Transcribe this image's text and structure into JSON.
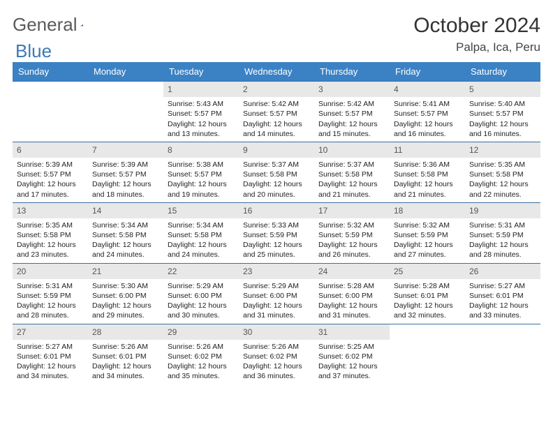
{
  "brand": {
    "part1": "General",
    "part2": "Blue"
  },
  "title": "October 2024",
  "location": "Palpa, Ica, Peru",
  "colors": {
    "header_bg": "#3b82c4",
    "header_text": "#ffffff",
    "row_border": "#3b6fa0",
    "daynum_bg": "#e8e8e8",
    "daynum_text": "#555555",
    "body_text": "#222222",
    "brand_gray": "#5a5a5a",
    "brand_blue": "#3b7ab5"
  },
  "weekdays": [
    "Sunday",
    "Monday",
    "Tuesday",
    "Wednesday",
    "Thursday",
    "Friday",
    "Saturday"
  ],
  "grid": [
    [
      null,
      null,
      {
        "n": "1",
        "sr": "5:43 AM",
        "ss": "5:57 PM",
        "dl": "12 hours and 13 minutes."
      },
      {
        "n": "2",
        "sr": "5:42 AM",
        "ss": "5:57 PM",
        "dl": "12 hours and 14 minutes."
      },
      {
        "n": "3",
        "sr": "5:42 AM",
        "ss": "5:57 PM",
        "dl": "12 hours and 15 minutes."
      },
      {
        "n": "4",
        "sr": "5:41 AM",
        "ss": "5:57 PM",
        "dl": "12 hours and 16 minutes."
      },
      {
        "n": "5",
        "sr": "5:40 AM",
        "ss": "5:57 PM",
        "dl": "12 hours and 16 minutes."
      }
    ],
    [
      {
        "n": "6",
        "sr": "5:39 AM",
        "ss": "5:57 PM",
        "dl": "12 hours and 17 minutes."
      },
      {
        "n": "7",
        "sr": "5:39 AM",
        "ss": "5:57 PM",
        "dl": "12 hours and 18 minutes."
      },
      {
        "n": "8",
        "sr": "5:38 AM",
        "ss": "5:57 PM",
        "dl": "12 hours and 19 minutes."
      },
      {
        "n": "9",
        "sr": "5:37 AM",
        "ss": "5:58 PM",
        "dl": "12 hours and 20 minutes."
      },
      {
        "n": "10",
        "sr": "5:37 AM",
        "ss": "5:58 PM",
        "dl": "12 hours and 21 minutes."
      },
      {
        "n": "11",
        "sr": "5:36 AM",
        "ss": "5:58 PM",
        "dl": "12 hours and 21 minutes."
      },
      {
        "n": "12",
        "sr": "5:35 AM",
        "ss": "5:58 PM",
        "dl": "12 hours and 22 minutes."
      }
    ],
    [
      {
        "n": "13",
        "sr": "5:35 AM",
        "ss": "5:58 PM",
        "dl": "12 hours and 23 minutes."
      },
      {
        "n": "14",
        "sr": "5:34 AM",
        "ss": "5:58 PM",
        "dl": "12 hours and 24 minutes."
      },
      {
        "n": "15",
        "sr": "5:34 AM",
        "ss": "5:58 PM",
        "dl": "12 hours and 24 minutes."
      },
      {
        "n": "16",
        "sr": "5:33 AM",
        "ss": "5:59 PM",
        "dl": "12 hours and 25 minutes."
      },
      {
        "n": "17",
        "sr": "5:32 AM",
        "ss": "5:59 PM",
        "dl": "12 hours and 26 minutes."
      },
      {
        "n": "18",
        "sr": "5:32 AM",
        "ss": "5:59 PM",
        "dl": "12 hours and 27 minutes."
      },
      {
        "n": "19",
        "sr": "5:31 AM",
        "ss": "5:59 PM",
        "dl": "12 hours and 28 minutes."
      }
    ],
    [
      {
        "n": "20",
        "sr": "5:31 AM",
        "ss": "5:59 PM",
        "dl": "12 hours and 28 minutes."
      },
      {
        "n": "21",
        "sr": "5:30 AM",
        "ss": "6:00 PM",
        "dl": "12 hours and 29 minutes."
      },
      {
        "n": "22",
        "sr": "5:29 AM",
        "ss": "6:00 PM",
        "dl": "12 hours and 30 minutes."
      },
      {
        "n": "23",
        "sr": "5:29 AM",
        "ss": "6:00 PM",
        "dl": "12 hours and 31 minutes."
      },
      {
        "n": "24",
        "sr": "5:28 AM",
        "ss": "6:00 PM",
        "dl": "12 hours and 31 minutes."
      },
      {
        "n": "25",
        "sr": "5:28 AM",
        "ss": "6:01 PM",
        "dl": "12 hours and 32 minutes."
      },
      {
        "n": "26",
        "sr": "5:27 AM",
        "ss": "6:01 PM",
        "dl": "12 hours and 33 minutes."
      }
    ],
    [
      {
        "n": "27",
        "sr": "5:27 AM",
        "ss": "6:01 PM",
        "dl": "12 hours and 34 minutes."
      },
      {
        "n": "28",
        "sr": "5:26 AM",
        "ss": "6:01 PM",
        "dl": "12 hours and 34 minutes."
      },
      {
        "n": "29",
        "sr": "5:26 AM",
        "ss": "6:02 PM",
        "dl": "12 hours and 35 minutes."
      },
      {
        "n": "30",
        "sr": "5:26 AM",
        "ss": "6:02 PM",
        "dl": "12 hours and 36 minutes."
      },
      {
        "n": "31",
        "sr": "5:25 AM",
        "ss": "6:02 PM",
        "dl": "12 hours and 37 minutes."
      },
      null,
      null
    ]
  ],
  "labels": {
    "sunrise": "Sunrise: ",
    "sunset": "Sunset: ",
    "daylight": "Daylight: "
  }
}
